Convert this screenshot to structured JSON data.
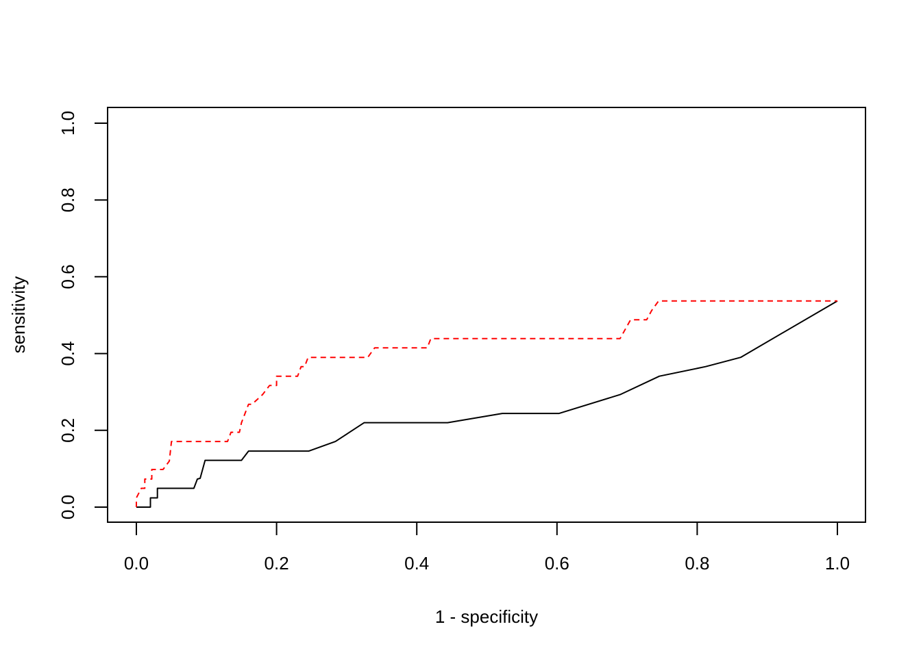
{
  "chart_data": {
    "type": "line",
    "title": "",
    "xlabel": "1 - specificity",
    "ylabel": "sensitivity",
    "xlim": [
      0,
      1
    ],
    "ylim": [
      0,
      1
    ],
    "x_ticks": [
      "0.0",
      "0.2",
      "0.4",
      "0.6",
      "0.8",
      "1.0"
    ],
    "y_ticks": [
      "0.0",
      "0.2",
      "0.4",
      "0.6",
      "0.8",
      "1.0"
    ],
    "grid": false,
    "legend": "none",
    "series": [
      {
        "color": "#000000",
        "line_style": "solid",
        "x": [
          0.0,
          0.02,
          0.02,
          0.03,
          0.03,
          0.082,
          0.087,
          0.091,
          0.098,
          0.15,
          0.16,
          0.246,
          0.284,
          0.325,
          0.444,
          0.522,
          0.603,
          0.69,
          0.746,
          0.812,
          0.862,
          1.0
        ],
        "y": [
          0.0,
          0.0,
          0.024,
          0.024,
          0.049,
          0.049,
          0.073,
          0.075,
          0.122,
          0.122,
          0.146,
          0.146,
          0.171,
          0.22,
          0.22,
          0.244,
          0.244,
          0.293,
          0.341,
          0.366,
          0.39,
          0.537
        ]
      },
      {
        "color": "#ff0000",
        "line_style": "dashed",
        "x": [
          0.0,
          0.0,
          0.007,
          0.012,
          0.012,
          0.022,
          0.022,
          0.038,
          0.047,
          0.05,
          0.13,
          0.135,
          0.147,
          0.15,
          0.16,
          0.165,
          0.18,
          0.19,
          0.2,
          0.2,
          0.23,
          0.235,
          0.24,
          0.245,
          0.33,
          0.34,
          0.415,
          0.42,
          0.69,
          0.705,
          0.728,
          0.735,
          0.745,
          1.0
        ],
        "y": [
          0.0,
          0.024,
          0.049,
          0.049,
          0.073,
          0.073,
          0.098,
          0.098,
          0.12,
          0.171,
          0.171,
          0.195,
          0.195,
          0.22,
          0.268,
          0.268,
          0.293,
          0.317,
          0.317,
          0.341,
          0.341,
          0.366,
          0.366,
          0.39,
          0.39,
          0.415,
          0.415,
          0.439,
          0.439,
          0.488,
          0.488,
          0.512,
          0.537,
          0.537
        ]
      }
    ]
  }
}
